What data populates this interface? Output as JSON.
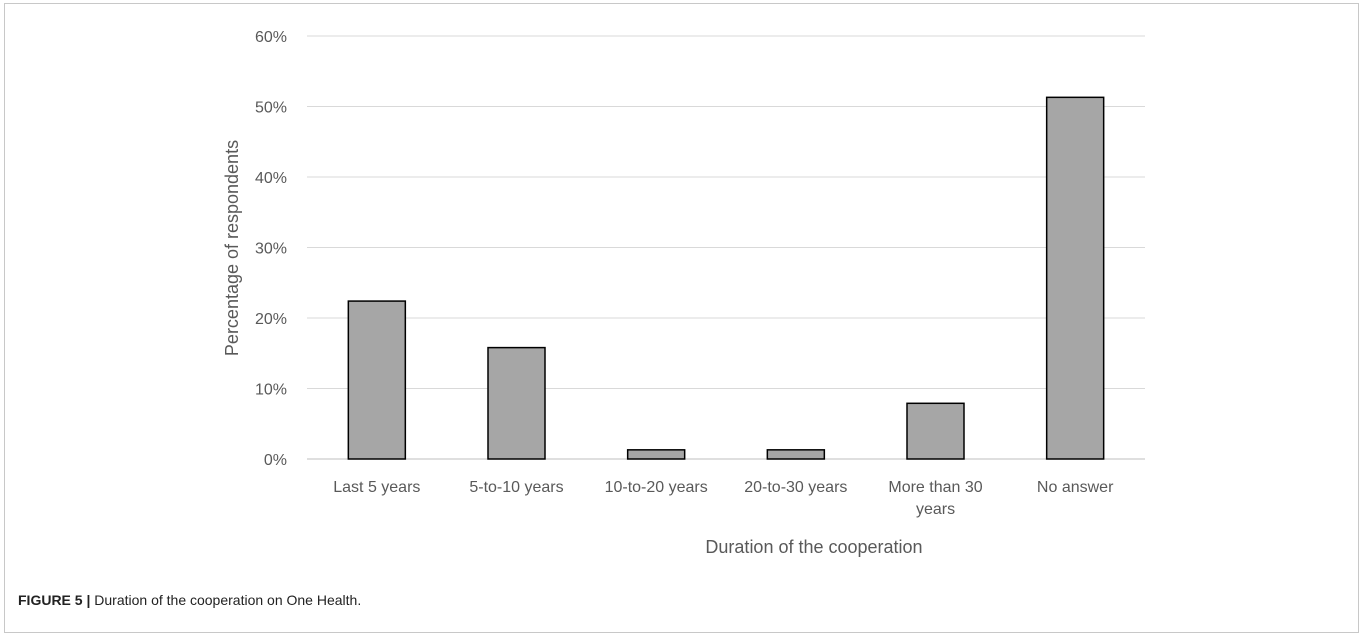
{
  "chart_data": {
    "type": "bar",
    "categories": [
      "Last 5 years",
      "5-to-10 years",
      "10-to-20 years",
      "20-to-30 years",
      "More than 30 years",
      "No answer"
    ],
    "values": [
      22.4,
      15.8,
      1.3,
      1.3,
      7.9,
      51.3
    ],
    "xlabel": "Duration of the cooperation",
    "ylabel": "Percentage of respondents",
    "ylim": [
      0,
      60
    ],
    "yticks": [
      "0%",
      "10%",
      "20%",
      "30%",
      "40%",
      "50%",
      "60%"
    ],
    "grid": true,
    "bar_color": "#a6a6a6",
    "bar_edge_color": "#000000",
    "grid_color": "#d9d9d9"
  },
  "caption": {
    "label": "FIGURE 5 |",
    "text": " Duration of the cooperation on One Health."
  }
}
